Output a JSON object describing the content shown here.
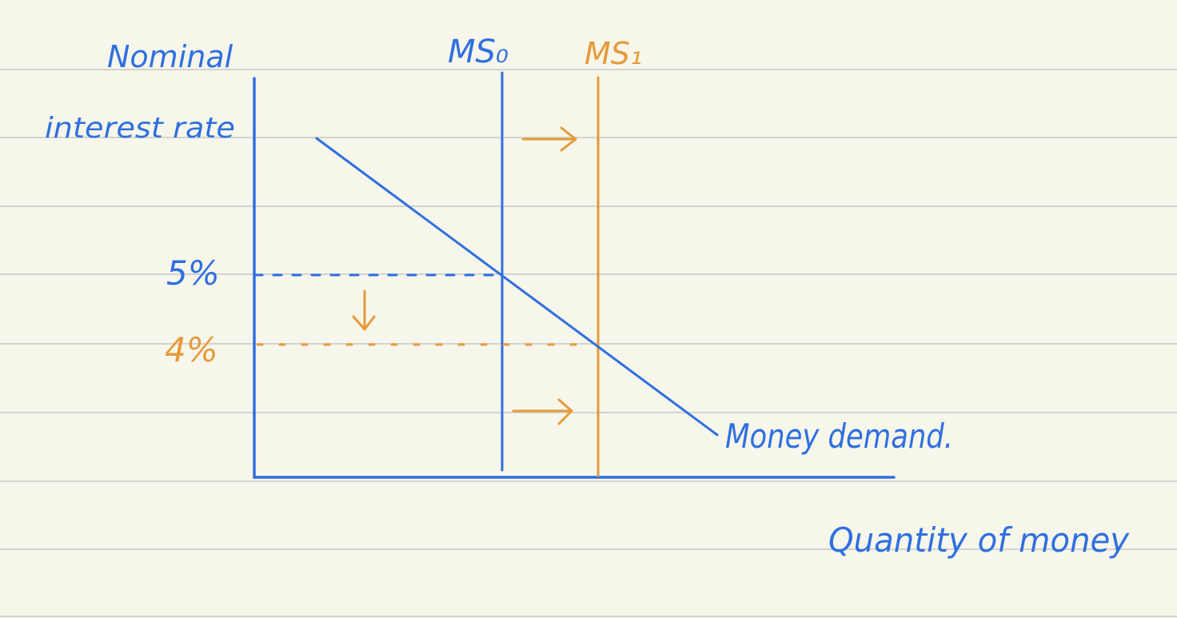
{
  "colors": {
    "paper": "#f6f6ea",
    "ruled_line": "#d3d3cf",
    "blue": "#2f6fe0",
    "orange": "#e69a3a"
  },
  "labels": {
    "y_axis_line1": "Nominal",
    "y_axis_line2": "interest rate",
    "x_axis": "Quantity of money",
    "ms0": "MS₀",
    "ms1": "MS₁",
    "money_demand": "Money demand.",
    "rate_initial": "5%",
    "rate_new": "4%"
  }
}
